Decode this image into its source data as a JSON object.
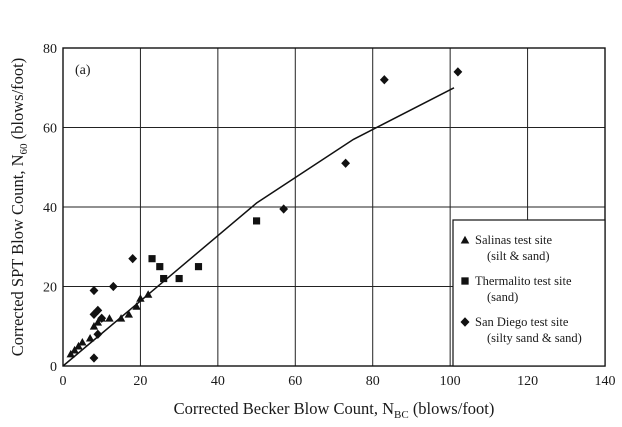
{
  "chart_data": {
    "type": "scatter",
    "panel_label": "(a)",
    "xlabel": {
      "main": "Corrected Becker Blow Count, N",
      "sub": "BC",
      "unit": " (blows/foot)"
    },
    "ylabel": {
      "main": "Corrected SPT Blow Count, N",
      "sub": "60",
      "unit": " (blows/foot)"
    },
    "xlim": [
      0,
      140
    ],
    "ylim": [
      0,
      80
    ],
    "xticks": [
      0,
      20,
      40,
      60,
      80,
      100,
      120,
      140
    ],
    "yticks": [
      0,
      20,
      40,
      60,
      80
    ],
    "grid": true,
    "legend_position": "right",
    "colors": {
      "marker": "#111111",
      "grid": "#222222",
      "frame": "#111111",
      "fit": "#111111"
    },
    "series": [
      {
        "name": "Salinas test site",
        "note": "(silt & sand)",
        "marker": "triangle",
        "points": [
          [
            2,
            3
          ],
          [
            3,
            4
          ],
          [
            4,
            5
          ],
          [
            5,
            6
          ],
          [
            7,
            7
          ],
          [
            8,
            10
          ],
          [
            9,
            11
          ],
          [
            10,
            12
          ],
          [
            12,
            12
          ],
          [
            15,
            12
          ],
          [
            17,
            13
          ],
          [
            19,
            15
          ],
          [
            20,
            17
          ],
          [
            22,
            18
          ]
        ]
      },
      {
        "name": "Thermalito test site",
        "note": "(sand)",
        "marker": "square",
        "points": [
          [
            23,
            27
          ],
          [
            25,
            25
          ],
          [
            26,
            22
          ],
          [
            30,
            22
          ],
          [
            35,
            25
          ],
          [
            50,
            36.5
          ]
        ]
      },
      {
        "name": "San Diego test site",
        "note": "(silty sand & sand)",
        "marker": "diamond",
        "points": [
          [
            8,
            2
          ],
          [
            8,
            19
          ],
          [
            8,
            13
          ],
          [
            9,
            8
          ],
          [
            9,
            14
          ],
          [
            10,
            12
          ],
          [
            13,
            20
          ],
          [
            18,
            27
          ],
          [
            57,
            39.5
          ],
          [
            73,
            51
          ],
          [
            83,
            72
          ],
          [
            102,
            74
          ]
        ]
      }
    ],
    "fit_line": {
      "x": [
        0,
        22,
        50,
        75,
        101
      ],
      "y": [
        0,
        18,
        41,
        57,
        70
      ]
    }
  }
}
